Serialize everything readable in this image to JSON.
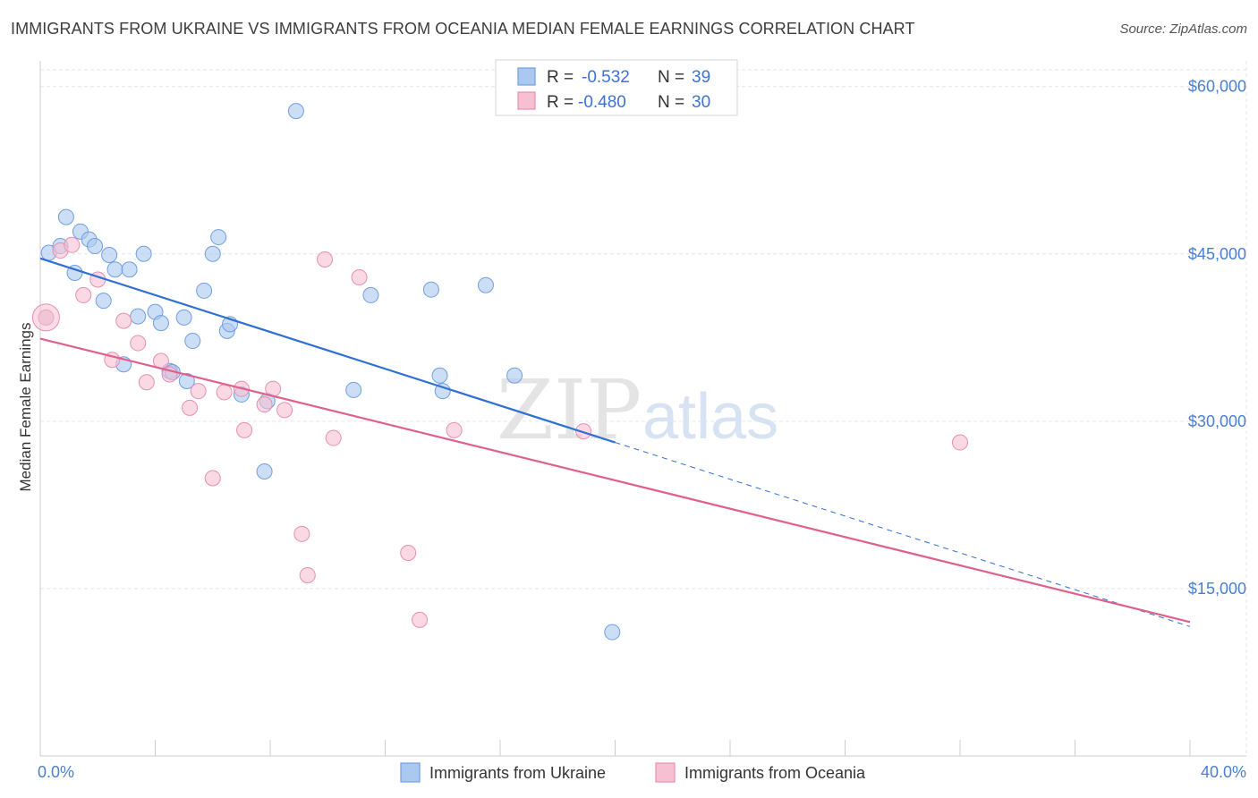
{
  "header": {
    "title": "IMMIGRANTS FROM UKRAINE VS IMMIGRANTS FROM OCEANIA MEDIAN FEMALE EARNINGS CORRELATION CHART",
    "source": "Source: ZipAtlas.com"
  },
  "watermark": {
    "zip": "ZIP",
    "atlas": "atlas"
  },
  "legend": {
    "rows": [
      {
        "r_label": "R =",
        "r_value": "-0.532",
        "n_label": "N =",
        "n_value": "39"
      },
      {
        "r_label": "R =",
        "r_value": "-0.480",
        "n_label": "N =",
        "n_value": "30"
      }
    ]
  },
  "colors": {
    "ukraine_fill": "#aac8f0",
    "ukraine_stroke": "#6f9fe0",
    "ukraine_line": "#2e6fd4",
    "oceania_fill": "#f7c0d2",
    "oceania_stroke": "#e88fae",
    "oceania_line": "#e0608c",
    "grid": "#e6e6e6",
    "axis_label": "#4a7fd0"
  },
  "chart_data": {
    "type": "scatter",
    "title": "IMMIGRANTS FROM UKRAINE VS IMMIGRANTS FROM OCEANIA MEDIAN FEMALE EARNINGS CORRELATION CHART",
    "xlabel": "",
    "ylabel": "Median Female Earnings",
    "xlim": [
      0,
      40
    ],
    "ylim": [
      0,
      61500
    ],
    "x_tick_labels": [
      "0.0%",
      "40.0%"
    ],
    "y_ticks": [
      15000,
      30000,
      45000,
      60000
    ],
    "y_tick_labels": [
      "$15,000",
      "$30,000",
      "$45,000",
      "$60,000"
    ],
    "grid": true,
    "series": [
      {
        "name": "Immigrants from Ukraine",
        "r": -0.532,
        "n": 39,
        "points": [
          [
            0.3,
            45100
          ],
          [
            0.7,
            45700
          ],
          [
            0.9,
            48300
          ],
          [
            1.2,
            43300
          ],
          [
            1.4,
            47000
          ],
          [
            1.7,
            46300
          ],
          [
            1.9,
            45700
          ],
          [
            2.2,
            40800
          ],
          [
            2.4,
            44900
          ],
          [
            2.6,
            43600
          ],
          [
            2.9,
            35100
          ],
          [
            3.1,
            43600
          ],
          [
            3.4,
            39400
          ],
          [
            3.6,
            45000
          ],
          [
            4.0,
            39800
          ],
          [
            4.2,
            38800
          ],
          [
            4.5,
            34500
          ],
          [
            4.6,
            34400
          ],
          [
            5.0,
            39300
          ],
          [
            5.1,
            33600
          ],
          [
            5.3,
            37200
          ],
          [
            5.7,
            41700
          ],
          [
            6.0,
            45000
          ],
          [
            6.2,
            46500
          ],
          [
            6.5,
            38100
          ],
          [
            6.6,
            38700
          ],
          [
            7.0,
            32400
          ],
          [
            7.9,
            31800
          ],
          [
            7.8,
            25500
          ],
          [
            8.9,
            57800
          ],
          [
            10.9,
            32800
          ],
          [
            11.5,
            41300
          ],
          [
            13.6,
            41800
          ],
          [
            13.9,
            34100
          ],
          [
            14.0,
            32700
          ],
          [
            15.5,
            42200
          ],
          [
            16.5,
            34100
          ],
          [
            19.9,
            11100
          ],
          [
            0.2,
            39300
          ]
        ],
        "trend": {
          "x0": 0,
          "y0": 44600,
          "x1": 20,
          "y1": 28100,
          "dashed_to_x": 40,
          "dashed_to_y": 11600
        }
      },
      {
        "name": "Immigrants from Oceania",
        "r": -0.48,
        "n": 30,
        "points": [
          [
            0.2,
            39300
          ],
          [
            0.7,
            45300
          ],
          [
            1.1,
            45800
          ],
          [
            1.5,
            41300
          ],
          [
            2.0,
            42700
          ],
          [
            2.5,
            35500
          ],
          [
            2.9,
            39000
          ],
          [
            3.4,
            37000
          ],
          [
            3.7,
            33500
          ],
          [
            4.2,
            35400
          ],
          [
            4.5,
            34200
          ],
          [
            5.2,
            31200
          ],
          [
            5.5,
            32700
          ],
          [
            6.0,
            24900
          ],
          [
            6.4,
            32600
          ],
          [
            7.0,
            32900
          ],
          [
            7.1,
            29200
          ],
          [
            7.8,
            31500
          ],
          [
            8.1,
            32900
          ],
          [
            8.5,
            31000
          ],
          [
            9.1,
            19900
          ],
          [
            9.3,
            16200
          ],
          [
            9.9,
            44500
          ],
          [
            10.2,
            28500
          ],
          [
            11.1,
            42900
          ],
          [
            12.8,
            18200
          ],
          [
            13.2,
            12200
          ],
          [
            14.4,
            29200
          ],
          [
            18.9,
            29100
          ],
          [
            32.0,
            28100
          ]
        ],
        "trend": {
          "x0": 0,
          "y0": 37400,
          "x1": 40,
          "y1": 12000
        }
      }
    ]
  },
  "bottom_legend": [
    {
      "label": "Immigrants from Ukraine"
    },
    {
      "label": "Immigrants from Oceania"
    }
  ]
}
